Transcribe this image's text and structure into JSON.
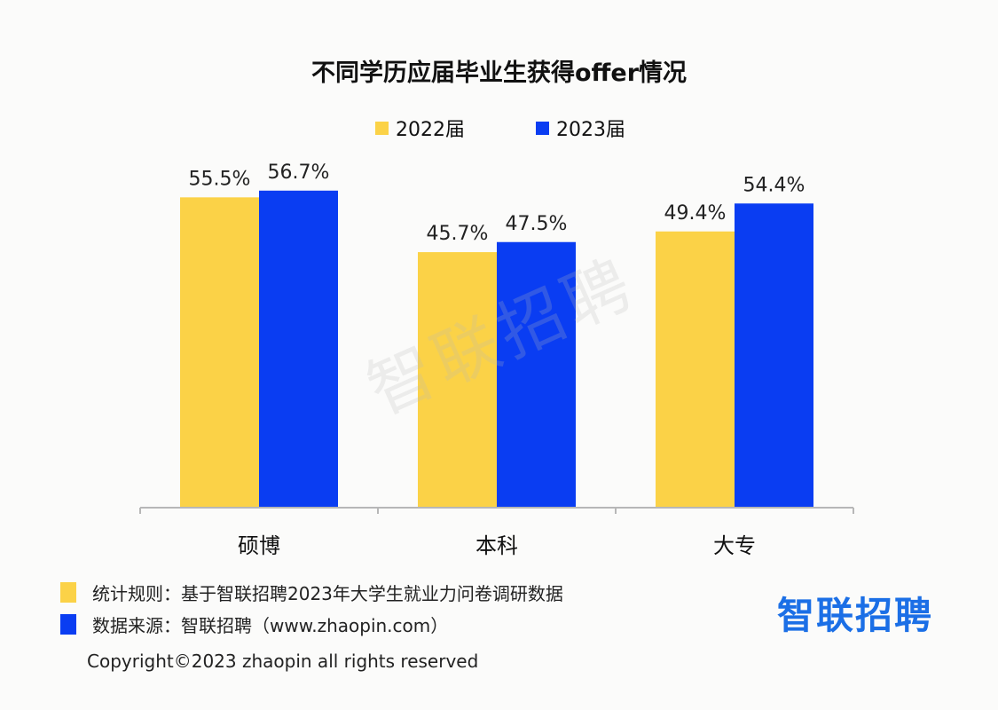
{
  "colors": {
    "series_2022": "#fbd247",
    "series_2023": "#0a3df2",
    "axis": "#b7b7b7",
    "brand": "#1b6fe6"
  },
  "chart_data": {
    "type": "bar",
    "title": "不同学历应届毕业生获得offer情况",
    "categories": [
      "硕博",
      "本科",
      "大专"
    ],
    "series": [
      {
        "name": "2022届",
        "values": [
          55.5,
          45.7,
          49.4
        ],
        "labels": [
          "55.5%",
          "45.7%",
          "49.4%"
        ]
      },
      {
        "name": "2023届",
        "values": [
          56.7,
          47.5,
          54.4
        ],
        "labels": [
          "56.7%",
          "47.5%",
          "54.4%"
        ]
      }
    ],
    "xlabel": "",
    "ylabel": "",
    "ylim": [
      0,
      100
    ],
    "legend_position": "top",
    "grid": false
  },
  "watermark": "智联招聘",
  "footnotes": {
    "method": "统计规则：基于智联招聘2023年大学生就业力问卷调研数据",
    "source": "数据来源：智联招聘（www.zhaopin.com）"
  },
  "brand": "智联招聘",
  "copyright": "Copyright©2023 zhaopin all rights reserved"
}
